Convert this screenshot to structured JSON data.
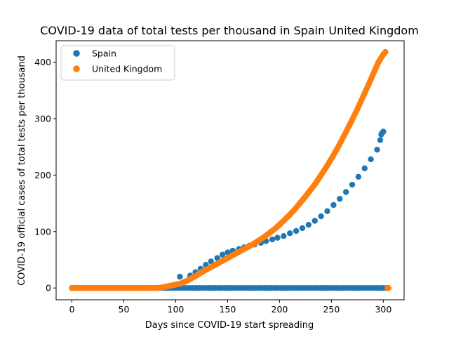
{
  "chart_data": {
    "type": "scatter",
    "title": "COVID-19 data of total tests per thousand in Spain United Kingdom",
    "xlabel": "Days since COVID-19 start spreading",
    "ylabel": "COVID-19 official cases of total tests per thousand",
    "xlim": [
      -15.2,
      320
    ],
    "ylim": [
      -20.9,
      438
    ],
    "xticks": [
      0,
      50,
      100,
      150,
      200,
      250,
      300
    ],
    "yticks": [
      0,
      100,
      200,
      300,
      400
    ],
    "legend_position": "upper-left",
    "grid": false,
    "series": [
      {
        "name": "Spain",
        "color": "#1f77b4",
        "points": [
          [
            104,
            20
          ],
          [
            114,
            22
          ],
          [
            119,
            28
          ],
          [
            124,
            34
          ],
          [
            129,
            41
          ],
          [
            134,
            47
          ],
          [
            140,
            53
          ],
          [
            145,
            59
          ],
          [
            150,
            63
          ],
          [
            155,
            66
          ],
          [
            161,
            69
          ],
          [
            166,
            72
          ],
          [
            171,
            75
          ],
          [
            176,
            77
          ],
          [
            182,
            80
          ],
          [
            187,
            83
          ],
          [
            193,
            86
          ],
          [
            198,
            89
          ],
          [
            204,
            92
          ],
          [
            210,
            97
          ],
          [
            216,
            101
          ],
          [
            222,
            106
          ],
          [
            228,
            112
          ],
          [
            234,
            119
          ],
          [
            240,
            127
          ],
          [
            246,
            136
          ],
          [
            252,
            147
          ],
          [
            258,
            158
          ],
          [
            264,
            170
          ],
          [
            270,
            183
          ],
          [
            276,
            197
          ],
          [
            282,
            212
          ],
          [
            288,
            228
          ],
          [
            294,
            245
          ],
          [
            297,
            262
          ],
          [
            298,
            272
          ],
          [
            299,
            275
          ],
          [
            300,
            277
          ]
        ],
        "zero_run": {
          "from": 0,
          "to": 303,
          "step": 3,
          "value": 0
        }
      },
      {
        "name": "United Kingdom",
        "color": "#ff7f0e",
        "points": [
          [
            0,
            0
          ],
          [
            10,
            0
          ],
          [
            20,
            0
          ],
          [
            30,
            0
          ],
          [
            40,
            0
          ],
          [
            50,
            0
          ],
          [
            60,
            0
          ],
          [
            70,
            0
          ],
          [
            80,
            0
          ],
          [
            85,
            0.5
          ],
          [
            90,
            2
          ],
          [
            95,
            4
          ],
          [
            100,
            6
          ],
          [
            105,
            8
          ],
          [
            110,
            12
          ],
          [
            115,
            17
          ],
          [
            120,
            22
          ],
          [
            125,
            28
          ],
          [
            130,
            33
          ],
          [
            135,
            38
          ],
          [
            140,
            43
          ],
          [
            145,
            48
          ],
          [
            150,
            53
          ],
          [
            155,
            58
          ],
          [
            160,
            63
          ],
          [
            165,
            68
          ],
          [
            170,
            73
          ],
          [
            175,
            78
          ],
          [
            180,
            84
          ],
          [
            185,
            90
          ],
          [
            190,
            97
          ],
          [
            195,
            104
          ],
          [
            200,
            112
          ],
          [
            205,
            121
          ],
          [
            210,
            130
          ],
          [
            215,
            140
          ],
          [
            220,
            151
          ],
          [
            225,
            162
          ],
          [
            230,
            174
          ],
          [
            235,
            186
          ],
          [
            240,
            200
          ],
          [
            245,
            214
          ],
          [
            250,
            229
          ],
          [
            255,
            245
          ],
          [
            260,
            262
          ],
          [
            265,
            280
          ],
          [
            270,
            298
          ],
          [
            275,
            317
          ],
          [
            280,
            337
          ],
          [
            285,
            357
          ],
          [
            290,
            378
          ],
          [
            295,
            399
          ],
          [
            300,
            414
          ],
          [
            302,
            418
          ],
          [
            304,
            0
          ],
          [
            305,
            0
          ]
        ]
      }
    ]
  }
}
